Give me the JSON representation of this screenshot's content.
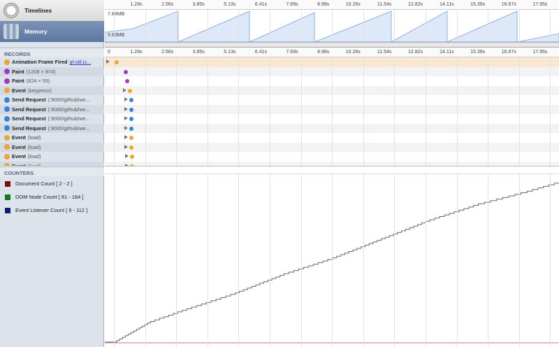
{
  "sidebar": {
    "timelines": "Timelines",
    "memory": "Memory",
    "records_header": "RECORDS",
    "counters_header": "COUNTERS",
    "records": [
      {
        "name": "Animation Frame Fired",
        "detail": "",
        "link": "gl-util.js...",
        "color": "#e8a53a"
      },
      {
        "name": "Paint",
        "detail": "(1208 × 874)",
        "color": "#9b3fbf"
      },
      {
        "name": "Paint",
        "detail": "(824 × 55)",
        "color": "#9b3fbf"
      },
      {
        "name": "Event",
        "detail": "(keypress)",
        "color": "#e8a53a"
      },
      {
        "name": "Send Request",
        "detail": "(:9000/github/we...",
        "color": "#3a82d6"
      },
      {
        "name": "Send Request",
        "detail": "(:9000/github/we...",
        "color": "#3a82d6"
      },
      {
        "name": "Send Request",
        "detail": "(:9000/github/we...",
        "color": "#3a82d6"
      },
      {
        "name": "Send Request",
        "detail": "(:9000/github/we...",
        "color": "#3a82d6"
      },
      {
        "name": "Event",
        "detail": "(load)",
        "color": "#e8a53a"
      },
      {
        "name": "Event",
        "detail": "(load)",
        "color": "#e8a53a"
      },
      {
        "name": "Event",
        "detail": "(load)",
        "color": "#e8a53a"
      },
      {
        "name": "Event",
        "detail": "(load)",
        "color": "#e8a53a"
      }
    ],
    "counters": [
      {
        "label": "Document Count [ 2 - 2 ]",
        "color": "#7a0f0f"
      },
      {
        "label": "DOM Node Count [ 81 - 184 ]",
        "color": "#0f7a1a"
      },
      {
        "label": "Event Listener Count [ 9 - 112 ]",
        "color": "#0f1a7a"
      }
    ]
  },
  "ruler": {
    "ticks": [
      "0",
      "1.28s",
      "2.56s",
      "3.85s",
      "5.13s",
      "6.41s",
      "7.69s",
      "8.98s",
      "10.26s",
      "11.54s",
      "12.82s",
      "14.11s",
      "15.39s",
      "16.67s",
      "17.95s"
    ]
  },
  "memory": {
    "max_label": "7.84MB",
    "min_label": "5.83MB"
  },
  "record_times_s": [
    0.12,
    0.5,
    0.55,
    0.65,
    0.72,
    0.72,
    0.72,
    0.72,
    0.72,
    0.72,
    0.75,
    0.75
  ],
  "chart_data": {
    "type": "line",
    "series": [
      {
        "name": "Event Listener Count",
        "x": [
          0,
          0.7,
          1.5,
          3,
          5,
          7,
          9,
          11,
          13,
          15,
          17,
          18.8
        ],
        "y": [
          9,
          15,
          22,
          30,
          40,
          52,
          62,
          74,
          86,
          96,
          104,
          112
        ]
      }
    ]
  }
}
